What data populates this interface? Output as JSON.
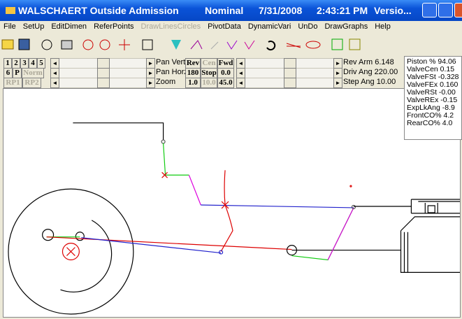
{
  "title_bar": {
    "app": "WALSCHAERT Outside Admission",
    "mode": "Nominal",
    "date": "7/31/2008",
    "time": "2:43:21 PM",
    "version": "Versio..."
  },
  "menu": [
    "File",
    "SetUp",
    "EditDimen",
    "ReferPoints",
    "DrawLinesCircles",
    "PivotData",
    "DynamicVari",
    "UnDo",
    "DrawGraphs",
    "Help"
  ],
  "controls": {
    "row1_buttons": [
      "1",
      "2",
      "3",
      "4",
      "5"
    ],
    "row2_buttons": [
      "6",
      "P",
      "Norm"
    ],
    "row3_buttons": [
      "RP1",
      "RP2"
    ],
    "pan_labels": [
      "Pan Vert",
      "Pan Horz",
      "Zoom"
    ],
    "dir_buttons": [
      "Rev",
      "Cen",
      "Fwd"
    ],
    "speed_buttons": [
      "180",
      "Stop",
      "0.0"
    ],
    "zoom_buttons": [
      "1.0",
      "10.0",
      "45.0"
    ],
    "right_labels": [
      "Rev Arm 6.148",
      "Driv Ang 220.00",
      "Step Ang 10.00"
    ]
  },
  "readouts": [
    "Piston % 94.06",
    "ValveCen 0.15",
    "ValveFSt -0.328",
    "ValveFEx 0.160",
    "ValveRSt -0.00",
    "ValveREx -0.15",
    "ExpLkAng -8.9",
    "FrontCO% 4.2",
    "RearCO% 4.0"
  ]
}
